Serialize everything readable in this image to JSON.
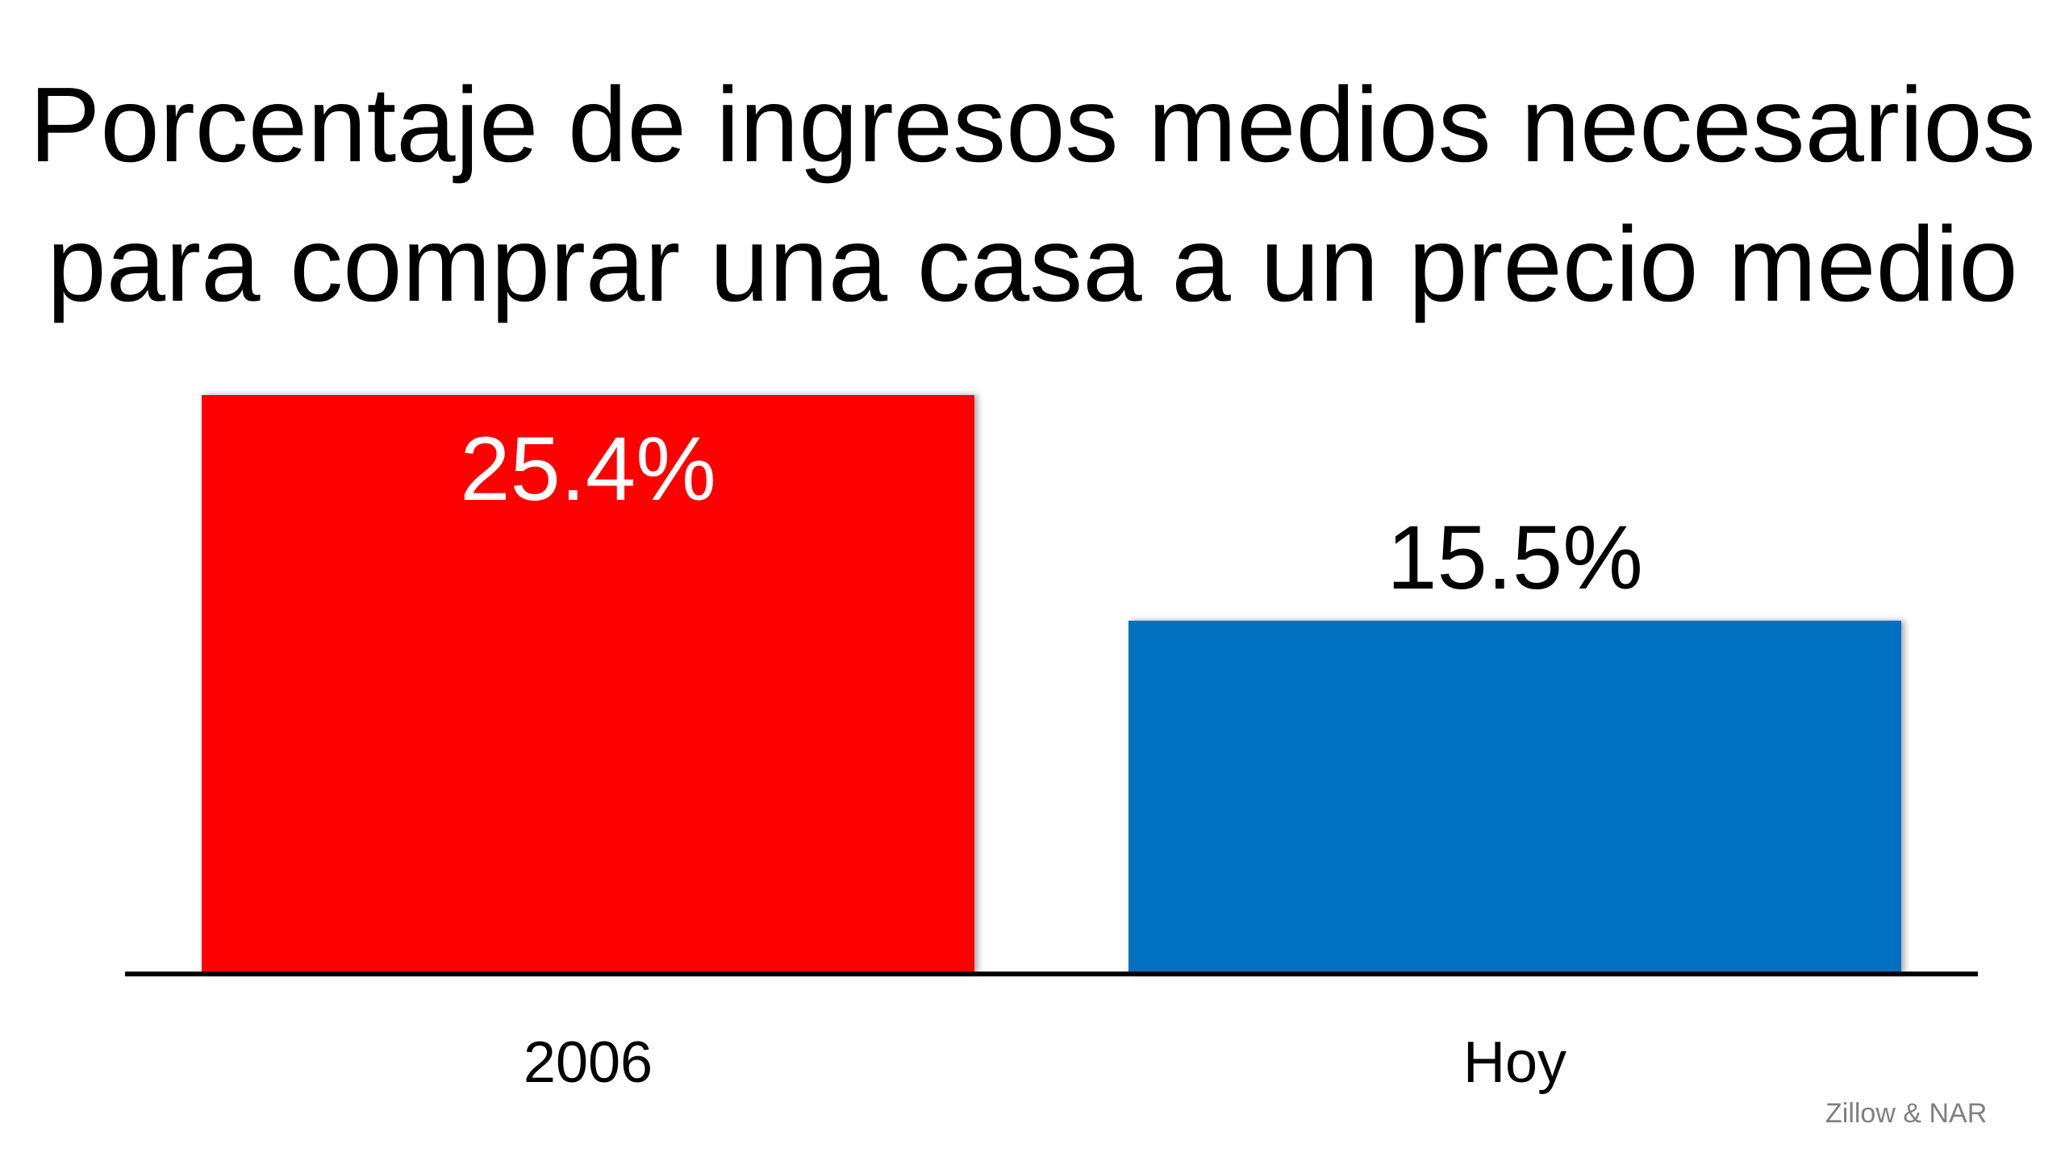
{
  "chart_data": {
    "type": "bar",
    "title": [
      "Porcentaje de ingresos medios necesarios",
      "para comprar una casa a un precio medio"
    ],
    "categories": [
      "2006",
      "Hoy"
    ],
    "values": [
      25.4,
      15.5
    ],
    "data_labels": [
      "25.4%",
      "15.5%"
    ],
    "colors": [
      "#ff0000",
      "#0070c0"
    ],
    "label_colors": [
      "#ffffff",
      "#000000"
    ],
    "label_inside": [
      true,
      false
    ],
    "xlabel": "",
    "ylabel": "",
    "ylim": [
      0,
      25.4
    ],
    "grid": false,
    "legend": "none",
    "source": "Zillow & NAR"
  }
}
